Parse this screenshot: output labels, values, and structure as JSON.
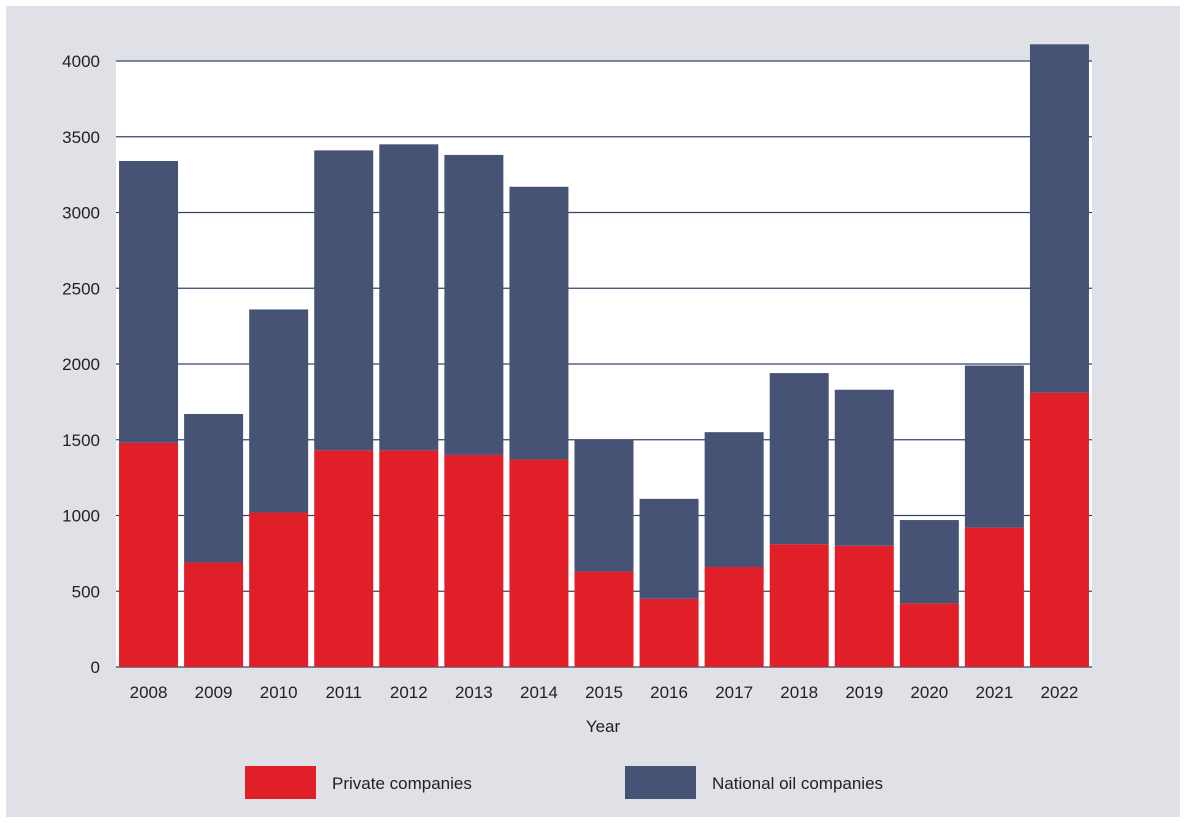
{
  "chart_data": {
    "type": "bar",
    "stacked": true,
    "title": "",
    "xlabel": "Year",
    "ylabel": "",
    "ylim": [
      0,
      4000
    ],
    "yticks": [
      0,
      500,
      1000,
      1500,
      2000,
      2500,
      3000,
      3500,
      4000
    ],
    "grid": true,
    "legend_position": "bottom",
    "categories": [
      "2008",
      "2009",
      "2010",
      "2011",
      "2012",
      "2013",
      "2014",
      "2015",
      "2016",
      "2017",
      "2018",
      "2019",
      "2020",
      "2021",
      "2022"
    ],
    "series": [
      {
        "name": "Private companies",
        "color": "#e01f28",
        "values": [
          1480,
          690,
          1020,
          1430,
          1430,
          1400,
          1370,
          630,
          450,
          660,
          810,
          800,
          420,
          920,
          1810
        ]
      },
      {
        "name": "National oil companies",
        "color": "#465375",
        "values": [
          1860,
          980,
          1340,
          1980,
          2020,
          1980,
          1800,
          870,
          660,
          890,
          1130,
          1030,
          550,
          1070,
          2300
        ]
      }
    ]
  }
}
